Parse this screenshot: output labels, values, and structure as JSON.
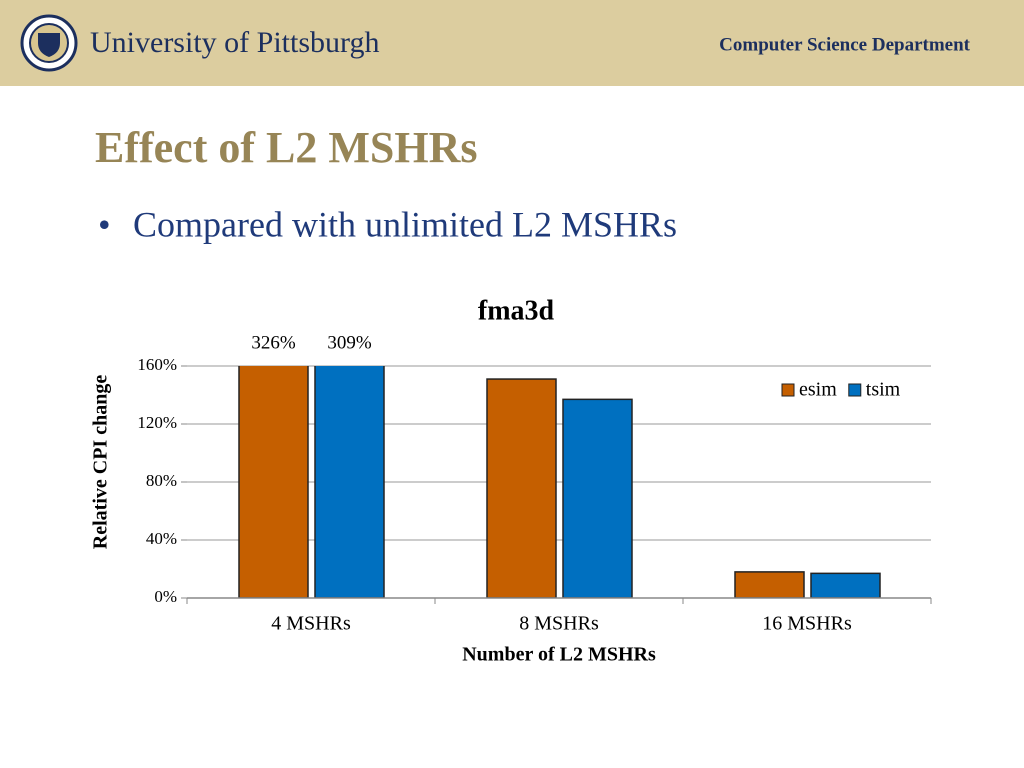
{
  "header": {
    "university": "University of Pittsburgh",
    "department": "Computer Science Department"
  },
  "title": "Effect of L2 MSHRs",
  "bullet": "Compared with unlimited L2 MSHRs",
  "chart_data": {
    "type": "bar",
    "title": "fma3d",
    "xlabel": "Number of L2 MSHRs",
    "ylabel": "Relative CPI change",
    "categories": [
      "4 MSHRs",
      "8 MSHRs",
      "16 MSHRs"
    ],
    "series": [
      {
        "name": "esim",
        "color": "#c55f00",
        "values": [
          326,
          151,
          18
        ],
        "value_labels": [
          "326%",
          null,
          null
        ]
      },
      {
        "name": "tsim",
        "color": "#0070c0",
        "values": [
          309,
          137,
          17
        ],
        "value_labels": [
          "309%",
          null,
          null
        ]
      }
    ],
    "ylim": [
      0,
      160
    ],
    "yticks": [
      {
        "value": 0,
        "label": "0%"
      },
      {
        "value": 40,
        "label": "40%"
      },
      {
        "value": 80,
        "label": "80%"
      },
      {
        "value": 120,
        "label": "120%"
      },
      {
        "value": 160,
        "label": "160%"
      }
    ],
    "grid": true,
    "legend": "upper right"
  }
}
